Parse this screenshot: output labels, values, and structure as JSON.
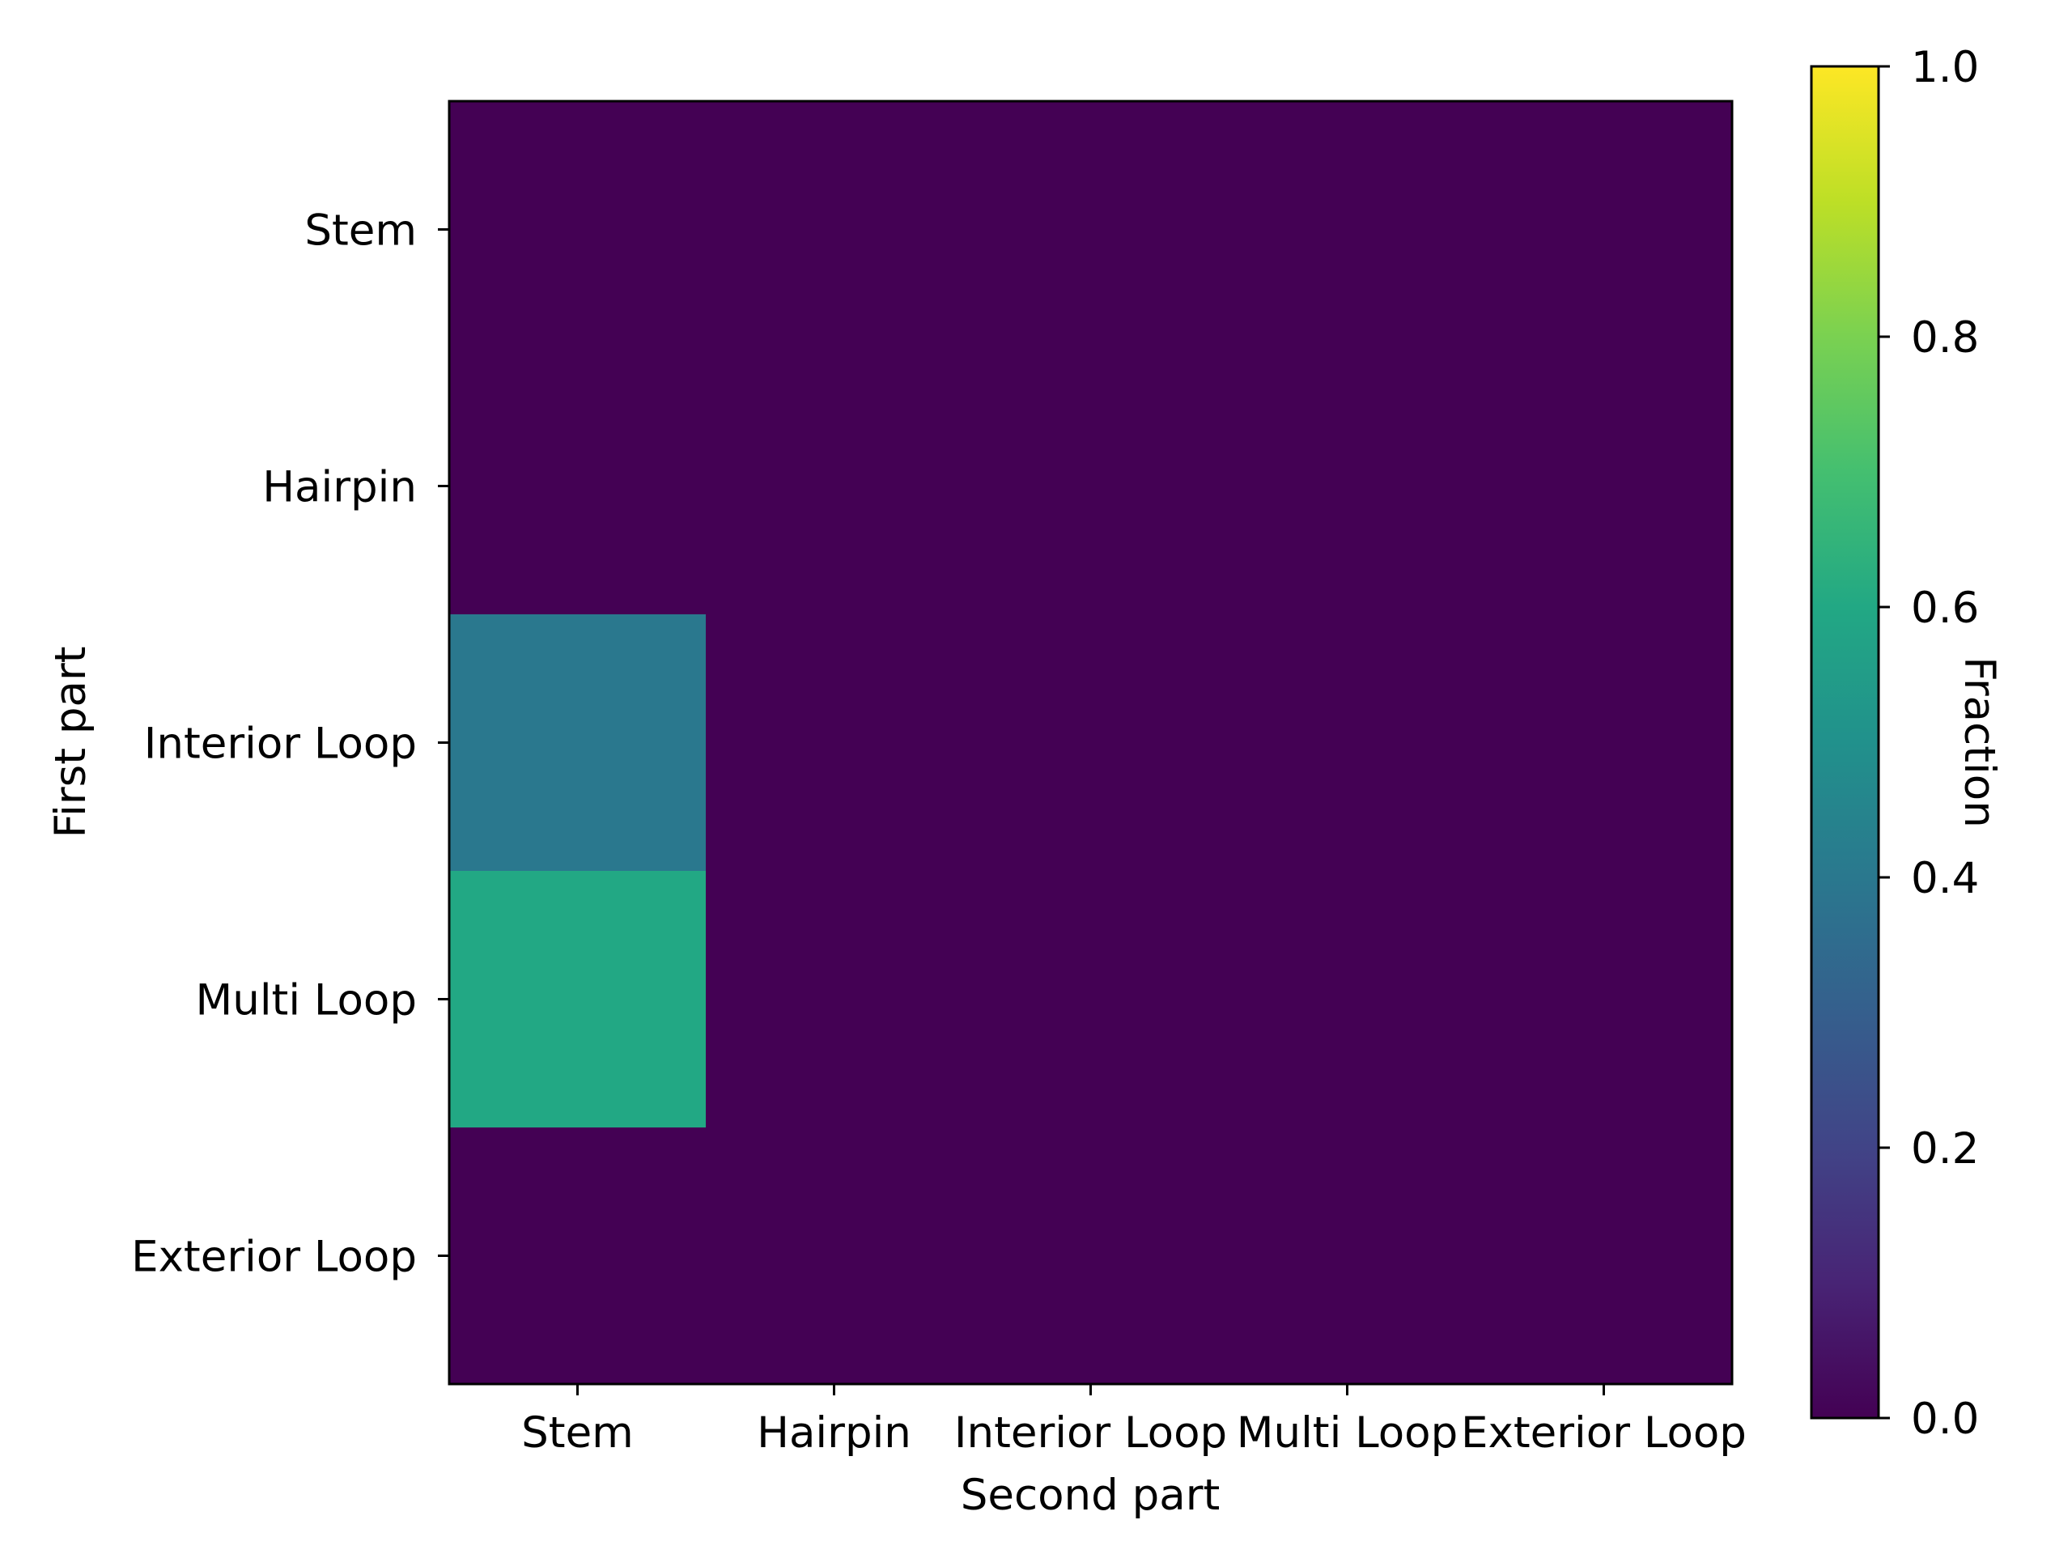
{
  "chart_data": {
    "type": "heatmap",
    "title": "",
    "xlabel": "Second part",
    "ylabel": "First part",
    "x_categories": [
      "Stem",
      "Hairpin",
      "Interior Loop",
      "Multi Loop",
      "Exterior Loop"
    ],
    "y_categories": [
      "Stem",
      "Hairpin",
      "Interior Loop",
      "Multi Loop",
      "Exterior Loop"
    ],
    "values": [
      [
        0.0,
        0.0,
        0.0,
        0.0,
        0.0
      ],
      [
        0.0,
        0.0,
        0.0,
        0.0,
        0.0
      ],
      [
        0.4,
        0.0,
        0.0,
        0.0,
        0.0
      ],
      [
        0.6,
        0.0,
        0.0,
        0.0,
        0.0
      ],
      [
        0.0,
        0.0,
        0.0,
        0.0,
        0.0
      ]
    ],
    "colormap": "viridis",
    "colorbar": {
      "label": "Fraction",
      "range": [
        0.0,
        1.0
      ],
      "ticks": [
        "0.0",
        "0.2",
        "0.4",
        "0.6",
        "0.8",
        "1.0"
      ],
      "placement": "right"
    },
    "grid": false
  }
}
